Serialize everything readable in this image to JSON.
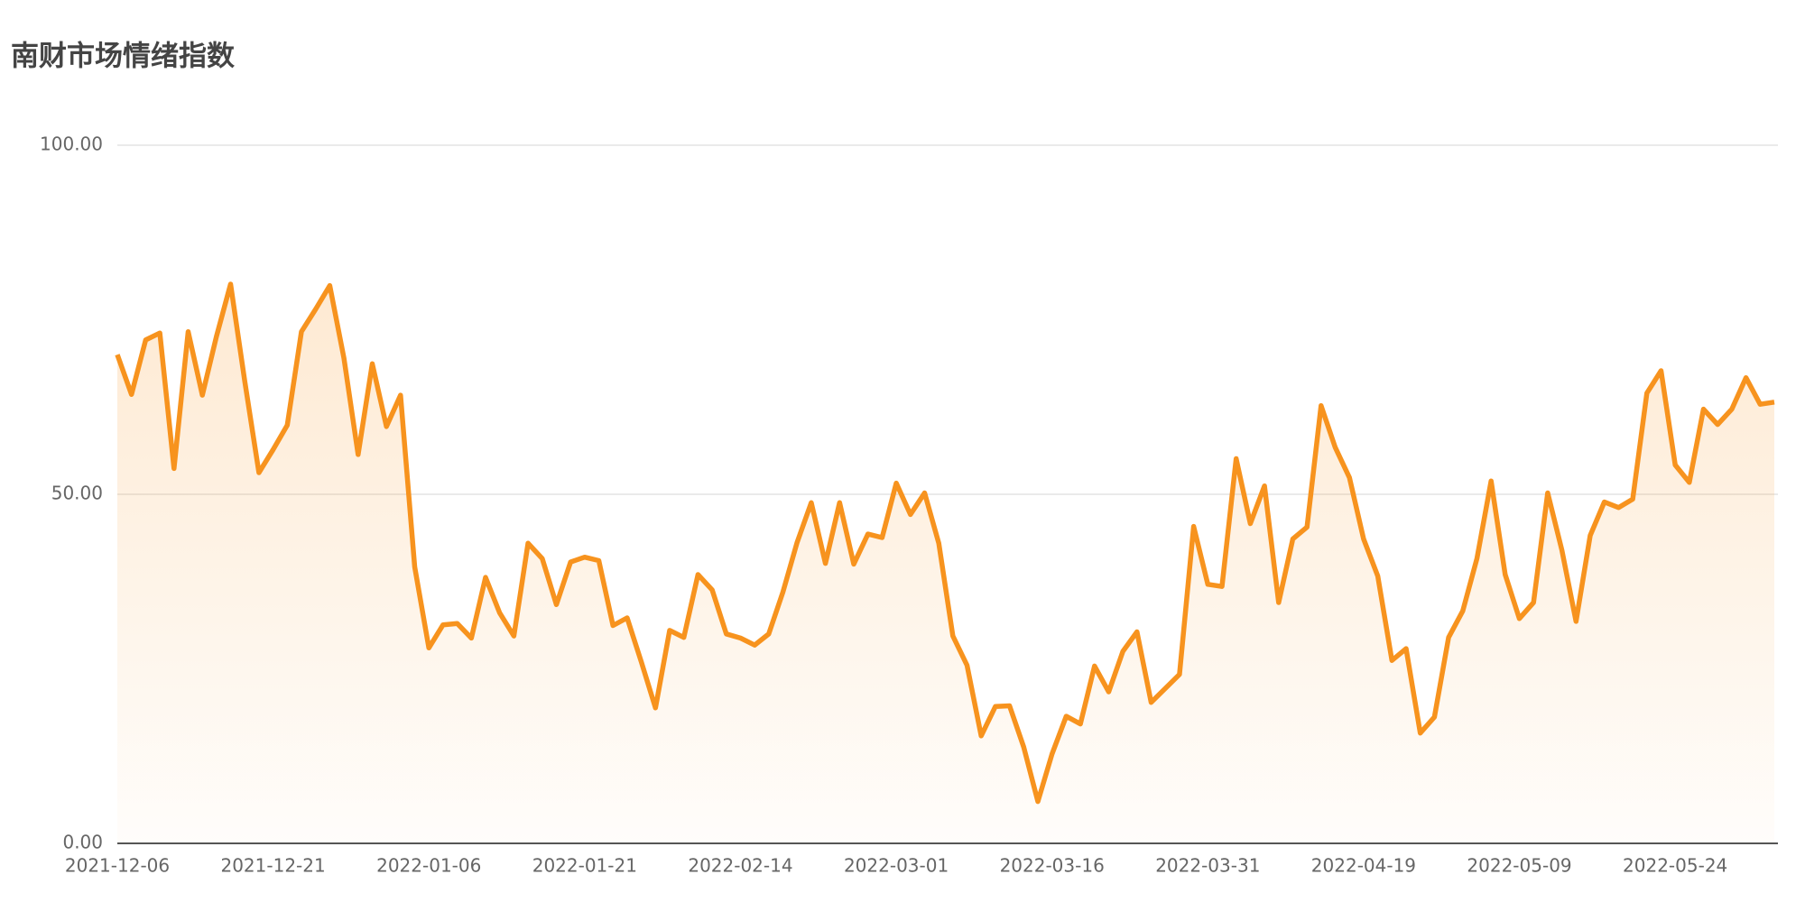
{
  "chart_data": {
    "type": "line",
    "title": "南财市场情绪指数",
    "categories": [
      "2021-12-06",
      null,
      null,
      null,
      null,
      null,
      null,
      null,
      null,
      null,
      null,
      "2021-12-21",
      null,
      null,
      null,
      null,
      null,
      null,
      null,
      null,
      null,
      null,
      "2022-01-06",
      null,
      null,
      null,
      null,
      null,
      null,
      null,
      null,
      null,
      null,
      "2022-01-21",
      null,
      null,
      null,
      null,
      null,
      null,
      null,
      null,
      null,
      null,
      "2022-02-14",
      null,
      null,
      null,
      null,
      null,
      null,
      null,
      null,
      null,
      null,
      "2022-03-01",
      null,
      null,
      null,
      null,
      null,
      null,
      null,
      null,
      null,
      null,
      "2022-03-16",
      null,
      null,
      null,
      null,
      null,
      null,
      null,
      null,
      null,
      null,
      "2022-03-31",
      null,
      null,
      null,
      null,
      null,
      null,
      null,
      null,
      null,
      null,
      "2022-04-19",
      null,
      null,
      null,
      null,
      null,
      null,
      null,
      null,
      null,
      null,
      "2022-05-09",
      null,
      null,
      null,
      null,
      null,
      null,
      null,
      null,
      null,
      null,
      "2022-05-24",
      null,
      null,
      null,
      null,
      null,
      null,
      null
    ],
    "series": [
      {
        "color": "#f7931e",
        "values": [
          70.0,
          64.3,
          72.1,
          73.1,
          53.7,
          73.3,
          64.2,
          72.6,
          80.1,
          66.2,
          53.1,
          56.4,
          59.9,
          73.3,
          76.5,
          79.9,
          69.5,
          55.7,
          68.7,
          59.7,
          64.2,
          39.6,
          28.0,
          31.3,
          31.5,
          29.4,
          38.1,
          33.0,
          29.7,
          43.0,
          40.8,
          34.2,
          40.3,
          41.0,
          40.5,
          31.2,
          32.3,
          26.0,
          19.4,
          30.5,
          29.5,
          38.5,
          36.3,
          30.0,
          29.4,
          28.4,
          30.0,
          36.0,
          43.1,
          48.8,
          40.1,
          48.8,
          40.0,
          44.3,
          43.8,
          51.6,
          47.1,
          50.2,
          43.0,
          29.7,
          25.5,
          15.4,
          19.6,
          19.7,
          13.8,
          6.0,
          12.8,
          18.2,
          17.1,
          25.4,
          21.7,
          27.5,
          30.3,
          20.2,
          22.2,
          24.2,
          45.4,
          37.1,
          36.8,
          55.1,
          45.8,
          51.2,
          34.5,
          43.6,
          45.3,
          62.7,
          56.7,
          52.4,
          43.6,
          38.3,
          26.2,
          27.9,
          15.8,
          18.1,
          29.5,
          33.3,
          40.8,
          51.9,
          38.5,
          32.2,
          34.5,
          50.2,
          42.0,
          31.8,
          44.1,
          48.9,
          48.1,
          49.3,
          64.5,
          67.7,
          54.2,
          51.7,
          62.2,
          60.0,
          62.2,
          66.7,
          62.9,
          63.2
        ]
      }
    ],
    "ylim": [
      0,
      100
    ],
    "yticks": [
      {
        "value": 0,
        "label": "0.00"
      },
      {
        "value": 50,
        "label": "50.00"
      },
      {
        "value": 100,
        "label": "100.00"
      }
    ],
    "grid": true,
    "area": true
  }
}
